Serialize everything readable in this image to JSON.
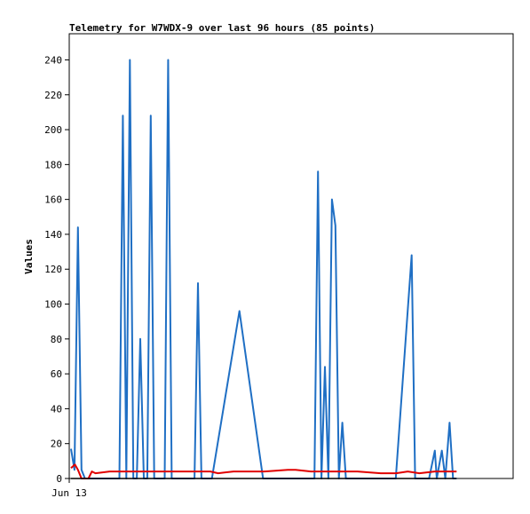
{
  "chart_data": {
    "type": "line",
    "title": "Telemetry for W7WDX-9 over last 96 hours (85 points)",
    "xlabel": "",
    "ylabel": "Values",
    "x_ticks": [
      "Jun 13"
    ],
    "y_ticks": [
      0,
      20,
      40,
      60,
      80,
      100,
      120,
      140,
      160,
      180,
      200,
      220,
      240
    ],
    "ylim": [
      0,
      255
    ],
    "xlim": [
      0,
      100
    ],
    "grid": false,
    "legend": "none",
    "series": [
      {
        "color": "#1f6fc4",
        "x": [
          0,
          0.9,
          1.8,
          2.7,
          3.6,
          4.5,
          12.5,
          13.4,
          14.3,
          15.2,
          16.1,
          17.0,
          17.9,
          18.8,
          19.7,
          20.6,
          21.5,
          22.4,
          23.3,
          24.2,
          25.1,
          26.0,
          31.0,
          31.9,
          32.8,
          33.7,
          34.6,
          35.5,
          36.4,
          43.5,
          49.6,
          56.3,
          62.9,
          63.8,
          64.7,
          65.6,
          66.5,
          67.4,
          68.3,
          69.2,
          70.1,
          71.0,
          71.9,
          72.8,
          83.9,
          88.0,
          88.9,
          89.8,
          90.7,
          92.5,
          94.0,
          94.5,
          95.8,
          96.7,
          97.8,
          98.7,
          99.6
        ],
        "values": [
          17,
          5,
          144,
          5,
          0,
          0,
          0,
          208,
          0,
          240,
          0,
          0,
          80,
          0,
          0,
          208,
          0,
          0,
          0,
          0,
          240,
          0,
          0,
          0,
          112,
          0,
          0,
          0,
          0,
          96,
          0,
          0,
          0,
          176,
          0,
          64,
          0,
          160,
          145,
          0,
          32,
          0,
          0,
          0,
          0,
          128,
          0,
          0,
          0,
          0,
          16,
          0,
          16,
          0,
          32,
          0,
          0
        ]
      },
      {
        "color": "#e00000",
        "x": [
          0,
          1.0,
          1.8,
          2.7,
          3.6,
          4.5,
          5.4,
          6.3,
          10.0,
          20.0,
          30.0,
          36.0,
          38.0,
          42.0,
          50.0,
          56.0,
          58.0,
          62.0,
          66.0,
          70.0,
          74.0,
          80.0,
          84.0,
          87.0,
          90.0,
          94.0,
          97.0,
          99.6
        ],
        "values": [
          6,
          8,
          5,
          0,
          0,
          0,
          4,
          3,
          4,
          4,
          4,
          4,
          3,
          4,
          4,
          5,
          5,
          4,
          4,
          4,
          4,
          3,
          3,
          4,
          3,
          4,
          4,
          4
        ]
      },
      {
        "color": "#000000",
        "x": [
          0,
          99.6
        ],
        "values": [
          0,
          0
        ]
      }
    ]
  }
}
